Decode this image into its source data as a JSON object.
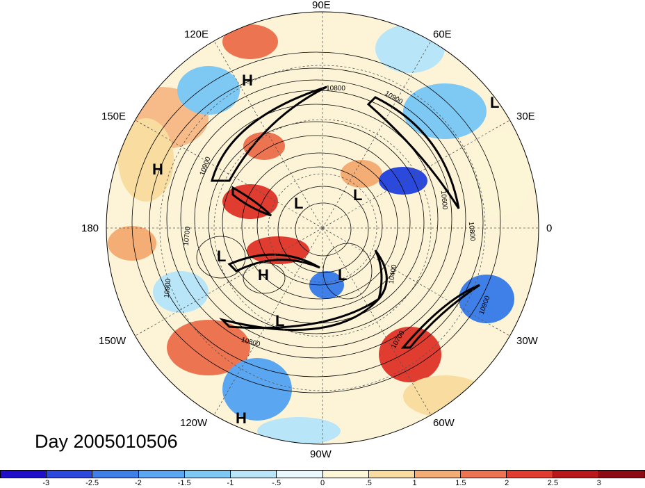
{
  "title": "Day 2005010506",
  "longitude_labels": [
    "90E",
    "60E",
    "30E",
    "0",
    "30W",
    "60W",
    "90W",
    "120W",
    "150W",
    "180",
    "150E",
    "120E"
  ],
  "pressure_centers": [
    "H",
    "H",
    "L",
    "L",
    "L",
    "L",
    "H",
    "L",
    "L",
    "H"
  ],
  "contour_labels": [
    "10800",
    "10900",
    "10600",
    "10800",
    "10900",
    "10700",
    "10400",
    "10900",
    "10800",
    "10700",
    "10900"
  ],
  "colorbar": {
    "ticks": [
      "-3",
      "-2.5",
      "-2",
      "-1.5",
      "-1",
      "-.5",
      "0",
      ".5",
      "1",
      "1.5",
      "2",
      "2.5",
      "3"
    ],
    "colors": [
      "#1f0fc8",
      "#2b49dc",
      "#3f7fe8",
      "#5aa6f0",
      "#7ec8f4",
      "#b8e6f8",
      "#e8f8fc",
      "#fdf6d6",
      "#f8dca0",
      "#f4ad74",
      "#ec7450",
      "#e03c30",
      "#b8181c",
      "#8c0a14"
    ]
  }
}
